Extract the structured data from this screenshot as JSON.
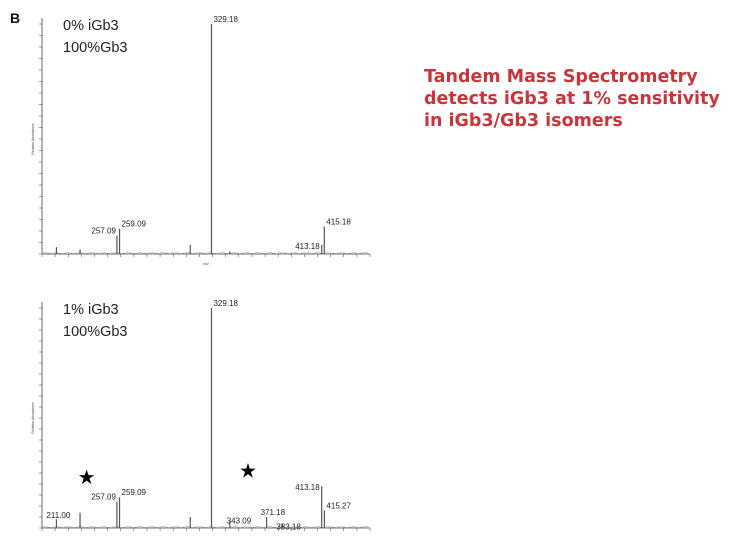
{
  "panel_label": "B",
  "headline": [
    "Tandem Mass Spectrometry",
    "detects iGb3 at 1% sensitivity",
    "in iGb3/Gb3 isomers"
  ],
  "colors": {
    "headline": "#c8363a",
    "trace": "#555555",
    "axis": "#444444",
    "text": "#222222"
  },
  "chart_data": [
    {
      "type": "line",
      "title": "",
      "legend_text": [
        "0% iGb3",
        "100%Gb3"
      ],
      "xlabel": "m/z",
      "ylabel": "Relative Abundance",
      "xlim": [
        200,
        450
      ],
      "ylim": [
        0,
        100
      ],
      "grid": false,
      "peaks": [
        {
          "mz": 211.0,
          "intensity": 3,
          "label": ""
        },
        {
          "mz": 229.0,
          "intensity": 2,
          "label": ""
        },
        {
          "mz": 257.09,
          "intensity": 8,
          "label": "257.09"
        },
        {
          "mz": 259.09,
          "intensity": 11,
          "label": "259.09"
        },
        {
          "mz": 313.0,
          "intensity": 4,
          "label": ""
        },
        {
          "mz": 329.18,
          "intensity": 100,
          "label": "329.18"
        },
        {
          "mz": 343.0,
          "intensity": 1,
          "label": ""
        },
        {
          "mz": 413.18,
          "intensity": 4,
          "label": "413.18"
        },
        {
          "mz": 415.18,
          "intensity": 12,
          "label": "415.18"
        }
      ]
    },
    {
      "type": "line",
      "title": "",
      "legend_text": [
        "1% iGb3",
        "100%Gb3"
      ],
      "xlabel": "",
      "ylabel": "Relative Abundance",
      "xlim": [
        200,
        450
      ],
      "ylim": [
        0,
        100
      ],
      "grid": false,
      "peaks": [
        {
          "mz": 211.0,
          "intensity": 4,
          "label": "211.00"
        },
        {
          "mz": 229.0,
          "intensity": 7,
          "label": ""
        },
        {
          "mz": 257.09,
          "intensity": 12,
          "label": "257.09"
        },
        {
          "mz": 259.09,
          "intensity": 14,
          "label": "259.09"
        },
        {
          "mz": 313.0,
          "intensity": 5,
          "label": ""
        },
        {
          "mz": 329.18,
          "intensity": 100,
          "label": "329.18"
        },
        {
          "mz": 343.09,
          "intensity": 3,
          "label": "343.09"
        },
        {
          "mz": 371.18,
          "intensity": 5,
          "label": "371.18"
        },
        {
          "mz": 383.18,
          "intensity": 2,
          "label": "383.18"
        },
        {
          "mz": 413.18,
          "intensity": 19,
          "label": "413.18"
        },
        {
          "mz": 415.27,
          "intensity": 8,
          "label": "415.27"
        }
      ],
      "annotations": [
        {
          "symbol": "★",
          "mz": 234,
          "intensity": 20
        },
        {
          "symbol": "★",
          "mz": 357,
          "intensity": 23
        }
      ]
    }
  ]
}
